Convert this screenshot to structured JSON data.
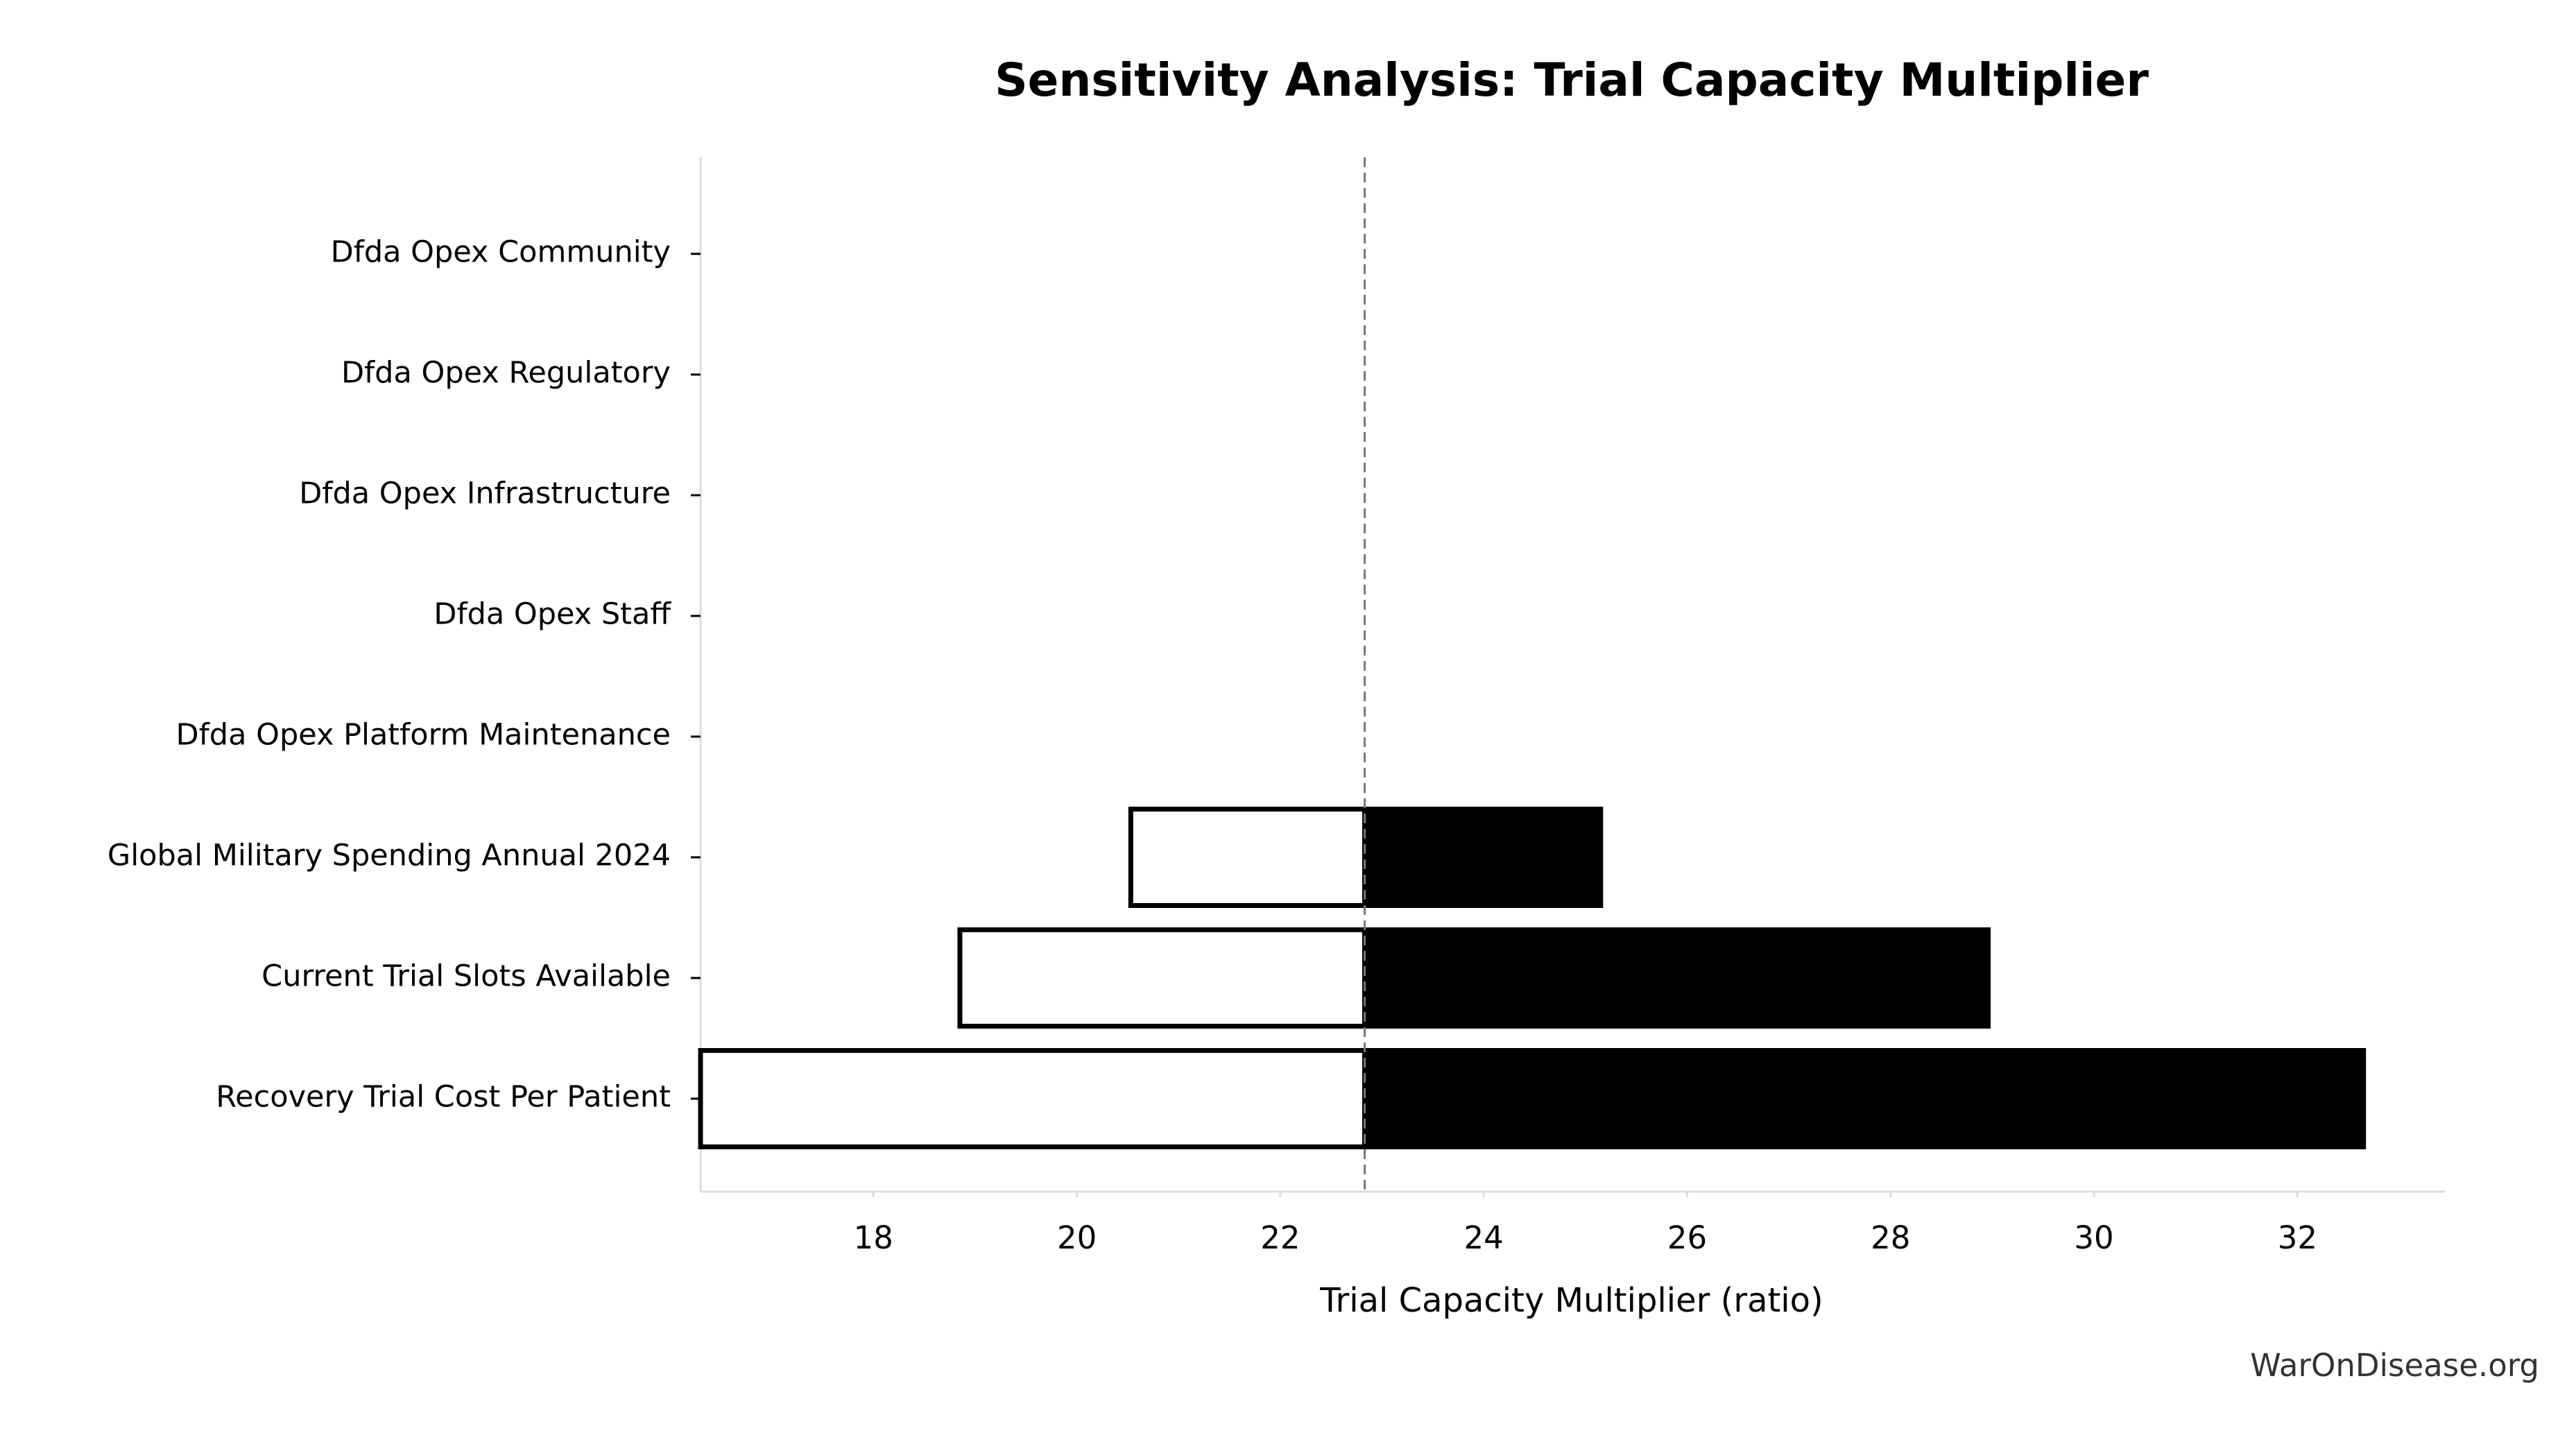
{
  "chart_data": {
    "type": "tornado",
    "title": "Sensitivity Analysis: Trial Capacity Multiplier",
    "xlabel": "Trial Capacity Multiplier (ratio)",
    "footer": "WarOnDisease.org",
    "categories": [
      "Dfda Opex Community",
      "Dfda Opex Regulatory",
      "Dfda Opex Infrastructure",
      "Dfda Opex Staff",
      "Dfda Opex Platform Maintenance",
      "Global Military Spending Annual 2024",
      "Current Trial Slots Available",
      "Recovery Trial Cost Per Patient"
    ],
    "baseline": 22.83,
    "series": [
      {
        "color": "#ffffff",
        "values": [
          22.83,
          22.83,
          22.83,
          22.83,
          22.83,
          20.53,
          18.85,
          16.3
        ]
      },
      {
        "color": "#000000",
        "values": [
          22.83,
          22.83,
          22.83,
          22.83,
          22.83,
          25.15,
          28.96,
          32.65
        ]
      }
    ],
    "xlim": [
      16.3,
      33.45
    ],
    "xticks": [
      18,
      20,
      22,
      24,
      26,
      28,
      30,
      32
    ]
  }
}
